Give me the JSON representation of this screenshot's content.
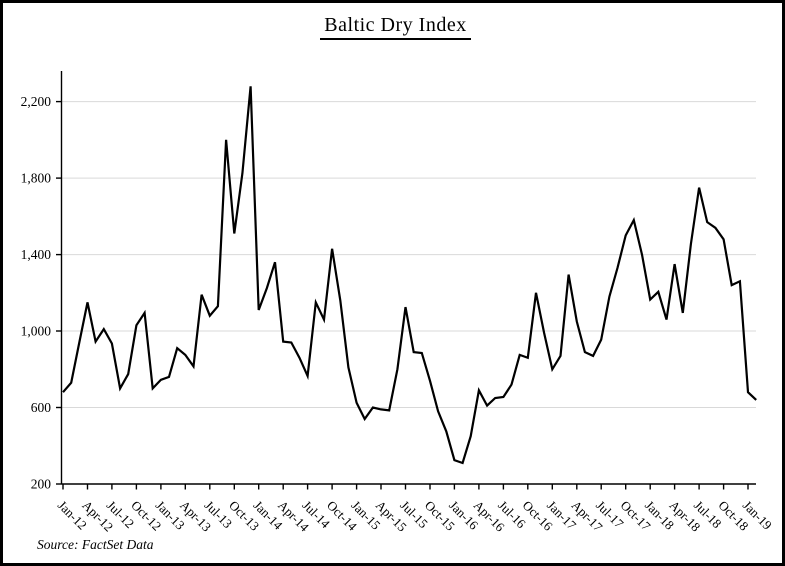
{
  "title": "Baltic Dry Index",
  "source_note": "Source: FactSet Data",
  "chart_data": {
    "type": "line",
    "title": "Baltic Dry Index",
    "series_name": "Baltic Dry Index",
    "x": [
      "Jan-12",
      "Feb-12",
      "Mar-12",
      "Apr-12",
      "May-12",
      "Jun-12",
      "Jul-12",
      "Aug-12",
      "Sep-12",
      "Oct-12",
      "Nov-12",
      "Dec-12",
      "Jan-13",
      "Feb-13",
      "Mar-13",
      "Apr-13",
      "May-13",
      "Jun-13",
      "Jul-13",
      "Aug-13",
      "Sep-13",
      "Oct-13",
      "Nov-13",
      "Dec-13",
      "Jan-14",
      "Feb-14",
      "Mar-14",
      "Apr-14",
      "May-14",
      "Jun-14",
      "Jul-14",
      "Aug-14",
      "Sep-14",
      "Oct-14",
      "Nov-14",
      "Dec-14",
      "Jan-15",
      "Feb-15",
      "Mar-15",
      "Apr-15",
      "May-15",
      "Jun-15",
      "Jul-15",
      "Aug-15",
      "Sep-15",
      "Oct-15",
      "Nov-15",
      "Dec-15",
      "Jan-16",
      "Feb-16",
      "Mar-16",
      "Apr-16",
      "May-16",
      "Jun-16",
      "Jul-16",
      "Aug-16",
      "Sep-16",
      "Oct-16",
      "Nov-16",
      "Dec-16",
      "Jan-17",
      "Feb-17",
      "Mar-17",
      "Apr-17",
      "May-17",
      "Jun-17",
      "Jul-17",
      "Aug-17",
      "Sep-17",
      "Oct-17",
      "Nov-17",
      "Dec-17",
      "Jan-18",
      "Feb-18",
      "Mar-18",
      "Apr-18",
      "May-18",
      "Jun-18",
      "Jul-18",
      "Aug-18",
      "Sep-18",
      "Oct-18",
      "Nov-18",
      "Dec-18",
      "Jan-19",
      "Feb-19"
    ],
    "values": [
      680,
      730,
      940,
      1150,
      945,
      1010,
      935,
      700,
      775,
      1030,
      1095,
      700,
      745,
      760,
      910,
      875,
      815,
      1190,
      1080,
      1130,
      2000,
      1510,
      1825,
      2280,
      1110,
      1225,
      1360,
      945,
      940,
      860,
      765,
      1150,
      1060,
      1430,
      1160,
      810,
      625,
      540,
      600,
      590,
      585,
      800,
      1125,
      890,
      885,
      740,
      580,
      475,
      325,
      310,
      450,
      690,
      610,
      650,
      655,
      720,
      875,
      860,
      1200,
      990,
      800,
      870,
      1295,
      1050,
      890,
      870,
      955,
      1180,
      1330,
      1500,
      1580,
      1400,
      1165,
      1205,
      1060,
      1350,
      1095,
      1455,
      1750,
      1570,
      1540,
      1480,
      1240,
      1260,
      680,
      640
    ],
    "x_tick_every": 3,
    "x_tick_labels": [
      "Jan-12",
      "Apr-12",
      "Jul-12",
      "Oct-12",
      "Jan-13",
      "Apr-13",
      "Jul-13",
      "Oct-13",
      "Jan-14",
      "Apr-14",
      "Jul-14",
      "Oct-14",
      "Jan-15",
      "Apr-15",
      "Jul-15",
      "Oct-15",
      "Jan-16",
      "Apr-16",
      "Jul-16",
      "Oct-16",
      "Jan-17",
      "Apr-17",
      "Jul-17",
      "Oct-17",
      "Jan-18",
      "Apr-18",
      "Jul-18",
      "Oct-18",
      "Jan-19"
    ],
    "yticks": [
      200,
      600,
      1000,
      1400,
      1800,
      2200
    ],
    "ytick_labels": [
      "200",
      "600",
      "1,000",
      "1,400",
      "1,800",
      "2,200"
    ],
    "ylim": [
      200,
      2360
    ],
    "xlabel": "",
    "ylabel": "",
    "grid": "horizontal",
    "legend": "none",
    "line_color": "#000000",
    "grid_color": "#d9d9d9",
    "axis_color": "#000000",
    "background": "#ffffff"
  }
}
